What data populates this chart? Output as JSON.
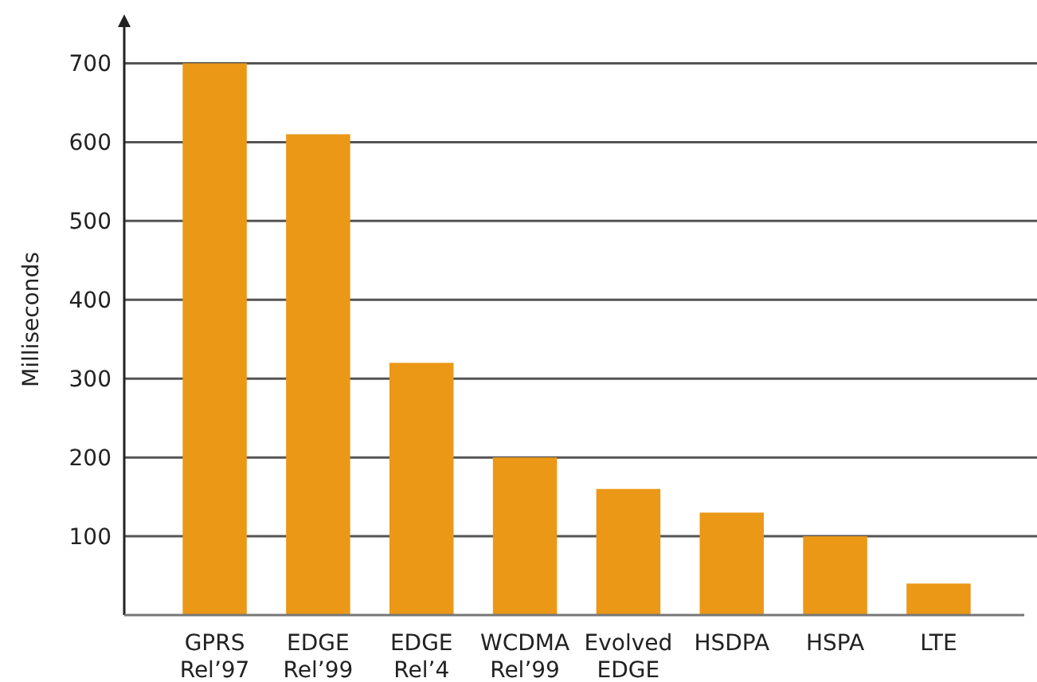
{
  "chart_data": {
    "type": "bar",
    "ylabel": "Milliseconds",
    "categories": [
      "GPRS\nRel’97",
      "EDGE\nRel’99",
      "EDGE\nRel’4",
      "WCDMA\nRel’99",
      "Evolved\nEDGE",
      "HSDPA",
      "HSPA",
      "LTE"
    ],
    "values": [
      700,
      610,
      320,
      200,
      160,
      130,
      100,
      40
    ],
    "color": "#eb9817",
    "ylim": [
      0,
      750
    ],
    "yticks": [
      100,
      200,
      300,
      400,
      500,
      600,
      700
    ],
    "grid": "y"
  }
}
